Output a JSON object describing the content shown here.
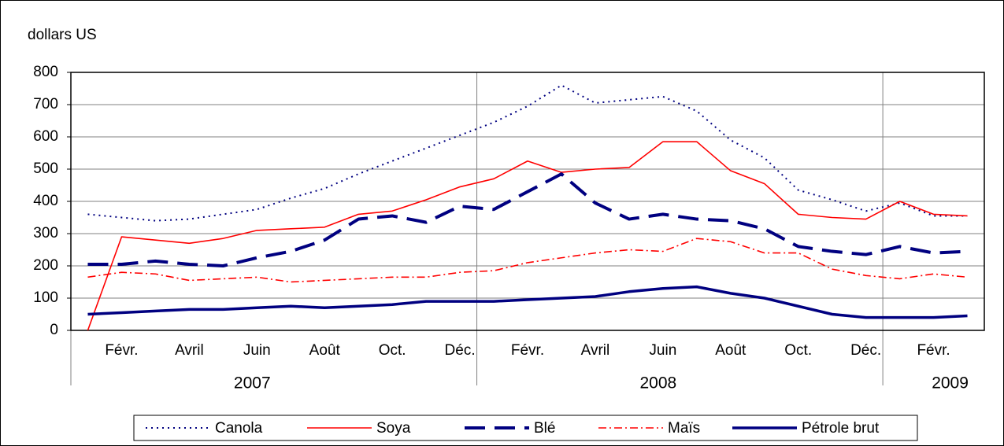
{
  "chart_data": {
    "type": "line",
    "ylabel": "dollars US",
    "categories": [
      null,
      "Févr.",
      null,
      "Avril",
      null,
      "Juin",
      null,
      "Août",
      null,
      "Oct.",
      null,
      "Déc.",
      null,
      "Févr.",
      null,
      "Avril",
      null,
      "Juin",
      null,
      "Août",
      null,
      "Oct.",
      null,
      "Déc.",
      null,
      "Févr.",
      null
    ],
    "years": [
      null,
      null,
      null,
      null,
      null,
      "2007",
      null,
      null,
      null,
      null,
      null,
      null,
      null,
      null,
      null,
      null,
      null,
      "2008",
      null,
      null,
      null,
      null,
      null,
      null,
      null,
      "2009",
      null
    ],
    "ylim": [
      0,
      800
    ],
    "yticks": [
      0,
      100,
      200,
      300,
      400,
      500,
      600,
      700,
      800
    ],
    "grid": true,
    "legend": "bottom",
    "series": [
      {
        "name": "Canola",
        "color": "#000080",
        "dash": "dotted",
        "values": [
          360,
          350,
          340,
          345,
          360,
          375,
          410,
          440,
          485,
          525,
          565,
          605,
          645,
          695,
          760,
          705,
          715,
          725,
          680,
          590,
          535,
          435,
          405,
          370,
          395,
          355,
          355
        ]
      },
      {
        "name": "Soya",
        "color": "#ff0000",
        "dash": "solid",
        "values": [
          0,
          290,
          280,
          270,
          285,
          310,
          315,
          320,
          360,
          370,
          405,
          445,
          470,
          525,
          490,
          500,
          505,
          585,
          585,
          495,
          455,
          360,
          350,
          345,
          400,
          360,
          355
        ]
      },
      {
        "name": "Blé",
        "color": "#000080",
        "dash": "dashed",
        "values": [
          205,
          205,
          215,
          205,
          200,
          225,
          245,
          280,
          345,
          355,
          335,
          385,
          375,
          430,
          485,
          395,
          345,
          360,
          345,
          340,
          315,
          260,
          245,
          235,
          260,
          240,
          245
        ]
      },
      {
        "name": "Maïs",
        "color": "#ff0000",
        "dash": "dashdot",
        "values": [
          165,
          180,
          175,
          155,
          160,
          165,
          150,
          155,
          160,
          165,
          165,
          180,
          185,
          210,
          225,
          240,
          250,
          245,
          285,
          275,
          240,
          240,
          190,
          170,
          160,
          175,
          165
        ]
      },
      {
        "name": "Pétrole brut",
        "color": "#000080",
        "dash": "thick",
        "values": [
          50,
          55,
          60,
          65,
          65,
          70,
          75,
          70,
          75,
          80,
          90,
          90,
          90,
          95,
          100,
          105,
          120,
          130,
          135,
          115,
          100,
          75,
          50,
          40,
          40,
          40,
          45
        ]
      }
    ]
  }
}
